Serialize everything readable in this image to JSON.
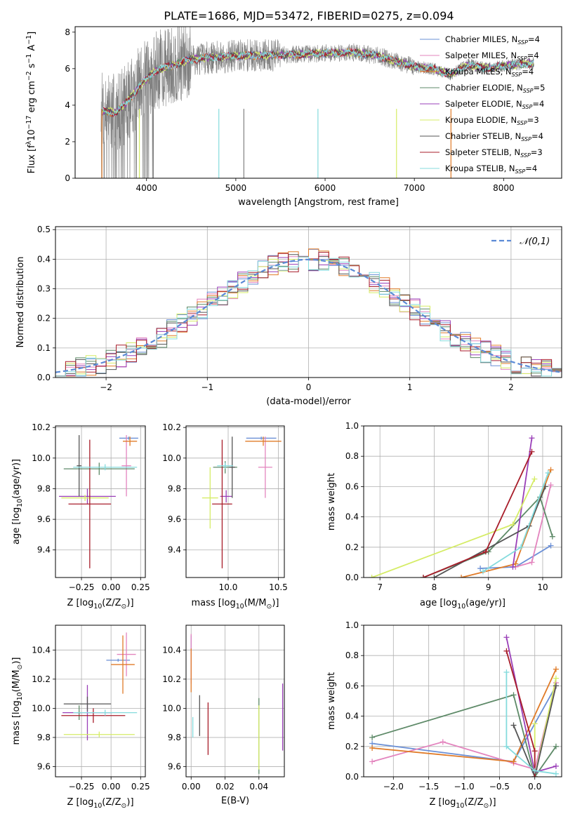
{
  "figure_title": "PLATE=1686, MJD=53472, FIBERID=0275, z=0.094",
  "models": [
    {
      "name": "Chabrier MILES",
      "nssp": "4",
      "color": "#6a8fd6"
    },
    {
      "name": "Salpeter MILES",
      "nssp": "4",
      "color": "#e384be"
    },
    {
      "name": "Kroupa MILES",
      "nssp": "4",
      "color": "#e07b28"
    },
    {
      "name": "Chabrier ELODIE",
      "nssp": "5",
      "color": "#5e8a68"
    },
    {
      "name": "Salpeter ELODIE",
      "nssp": "4",
      "color": "#9a3fb8"
    },
    {
      "name": "Kroupa ELODIE",
      "nssp": "3",
      "color": "#d5ec66"
    },
    {
      "name": "Chabrier STELIB",
      "nssp": "4",
      "color": "#555555"
    },
    {
      "name": "Salpeter STELIB",
      "nssp": "3",
      "color": "#a81d2a"
    },
    {
      "name": "Kroupa STELIB",
      "nssp": "4",
      "color": "#85dbdd"
    }
  ],
  "chart_data": [
    {
      "id": "spectrum",
      "type": "line",
      "xlabel": "wavelength [Angstrom, rest frame]",
      "ylabel_parts": [
        "Flux [f",
        "λ",
        "10",
        "−17",
        " erg cm",
        "−2",
        " s",
        "−1",
        " A",
        "−1",
        "]"
      ],
      "xlim": [
        3200,
        8650
      ],
      "ylim": [
        0,
        8.3
      ],
      "xticks": [
        4000,
        5000,
        6000,
        7000,
        8000
      ],
      "yticks": [
        0,
        2,
        4,
        6,
        8
      ],
      "legend_location": "upper right",
      "grid": false,
      "observed_color": "#808080",
      "continuum_anchors": [
        [
          3500,
          3.7
        ],
        [
          3650,
          3.6
        ],
        [
          3750,
          4.0
        ],
        [
          3850,
          4.6
        ],
        [
          3950,
          5.2
        ],
        [
          4100,
          5.9
        ],
        [
          4300,
          6.2
        ],
        [
          4500,
          6.5
        ],
        [
          4700,
          6.6
        ],
        [
          5000,
          6.7
        ],
        [
          5500,
          6.75
        ],
        [
          6000,
          6.85
        ],
        [
          6300,
          6.9
        ],
        [
          6600,
          6.7
        ],
        [
          7000,
          6.1
        ],
        [
          7200,
          6.0
        ],
        [
          7400,
          5.7
        ],
        [
          7600,
          6.2
        ],
        [
          7800,
          6.05
        ],
        [
          8000,
          6.15
        ],
        [
          8300,
          6.3
        ]
      ]
    },
    {
      "id": "residuals",
      "type": "histogram",
      "xlabel": "(data-model)/error",
      "ylabel": "Normed distribution",
      "xlim": [
        -2.5,
        2.5
      ],
      "ylim": [
        0,
        0.51
      ],
      "xticks": [
        -2,
        -1,
        0,
        1,
        2
      ],
      "yticks": [
        0.0,
        0.1,
        0.2,
        0.3,
        0.4,
        0.5
      ],
      "grid": true,
      "legend_location": "upper right",
      "gaussian_label": "𝒩(0,1)",
      "gaussian_color": "#5b8ad6",
      "bin_width": 0.1,
      "bin_start": -2.5
    },
    {
      "id": "age_vs_Z",
      "type": "errorbar",
      "xlabel_parts": [
        "Z [log",
        "10",
        "(Z/Z",
        "⊙",
        ")]"
      ],
      "ylabel_parts": [
        "age  [log",
        "10",
        "(age/yr)]"
      ],
      "xlim": [
        -0.47,
        0.29
      ],
      "ylim": [
        9.22,
        10.21
      ],
      "xticks": [
        -0.25,
        0.0,
        0.25
      ],
      "yticks": [
        9.4,
        9.6,
        9.8,
        10.0,
        10.2
      ],
      "grid": true,
      "points": [
        {
          "model": 0,
          "x": 0.15,
          "xerr": 0.08,
          "y": 10.13,
          "yerr": 0.01
        },
        {
          "model": 1,
          "x": 0.13,
          "xerr": 0.04,
          "y": 9.95,
          "yerr": 0.2
        },
        {
          "model": 2,
          "x": 0.16,
          "xerr": 0.06,
          "y": 10.11,
          "yerr": 0.03
        },
        {
          "model": 3,
          "x": -0.1,
          "xerr": 0.3,
          "y": 9.93,
          "yerr": 0.04
        },
        {
          "model": 4,
          "x": -0.2,
          "xerr": 0.24,
          "y": 9.75,
          "yerr": 0.05
        },
        {
          "model": 5,
          "x": -0.22,
          "xerr": 0.2,
          "y": 9.74,
          "yerr": 0.02
        },
        {
          "model": 6,
          "x": -0.27,
          "xerr": 0.02,
          "y": 9.95,
          "yerr": 0.2
        },
        {
          "model": 7,
          "x": -0.18,
          "xerr": 0.18,
          "y": 9.7,
          "yerr": 0.42
        },
        {
          "model": 8,
          "x": -0.05,
          "xerr": 0.27,
          "y": 9.94,
          "yerr": 0.02
        }
      ]
    },
    {
      "id": "age_vs_mass",
      "type": "errorbar",
      "xlabel_parts": [
        "mass [log",
        "10",
        "(M/M",
        "⊙",
        ")]"
      ],
      "ylabel_parts": [],
      "xlim": [
        9.58,
        10.56
      ],
      "ylim": [
        9.22,
        10.21
      ],
      "xticks": [
        10.0,
        10.5
      ],
      "yticks": [
        9.4,
        9.6,
        9.8,
        10.0,
        10.2
      ],
      "grid": true,
      "points": [
        {
          "model": 0,
          "x": 10.33,
          "xerr": 0.15,
          "y": 10.13,
          "yerr": 0.01
        },
        {
          "model": 1,
          "x": 10.37,
          "xerr": 0.07,
          "y": 9.94,
          "yerr": 0.2
        },
        {
          "model": 2,
          "x": 10.35,
          "xerr": 0.18,
          "y": 10.11,
          "yerr": 0.03
        },
        {
          "model": 3,
          "x": 9.97,
          "xerr": 0.12,
          "y": 9.94,
          "yerr": 0.04
        },
        {
          "model": 4,
          "x": 9.98,
          "xerr": 0.06,
          "y": 9.75,
          "yerr": 0.04
        },
        {
          "model": 5,
          "x": 9.82,
          "xerr": 0.08,
          "y": 9.74,
          "yerr": 0.2
        },
        {
          "model": 6,
          "x": 10.04,
          "xerr": 0.03,
          "y": 9.94,
          "yerr": 0.2
        },
        {
          "model": 7,
          "x": 9.94,
          "xerr": 0.1,
          "y": 9.7,
          "yerr": 0.42
        },
        {
          "model": 8,
          "x": 9.97,
          "xerr": 0.08,
          "y": 9.95,
          "yerr": 0.02
        }
      ]
    },
    {
      "id": "massweight_vs_age",
      "type": "line",
      "xlabel_parts": [
        "age  [log",
        "10",
        "(age/yr)]"
      ],
      "ylabel": "mass weight",
      "xlim": [
        6.7,
        10.35
      ],
      "ylim": [
        0,
        1
      ],
      "xticks": [
        7,
        8,
        9,
        10
      ],
      "yticks": [
        0.0,
        0.2,
        0.4,
        0.6,
        0.8,
        1.0
      ],
      "grid": true,
      "series": [
        {
          "model": 0,
          "points": [
            [
              8.85,
              0.06
            ],
            [
              9.5,
              0.07
            ],
            [
              10.15,
              0.21
            ]
          ]
        },
        {
          "model": 1,
          "points": [
            [
              9.5,
              0.07
            ],
            [
              9.8,
              0.1
            ],
            [
              10.15,
              0.61
            ]
          ]
        },
        {
          "model": 2,
          "points": [
            [
              8.5,
              0.0
            ],
            [
              9.5,
              0.09
            ],
            [
              10.15,
              0.71
            ]
          ]
        },
        {
          "model": 3,
          "points": [
            [
              7.8,
              0.0
            ],
            [
              9.0,
              0.17
            ],
            [
              9.95,
              0.53
            ],
            [
              10.18,
              0.27
            ]
          ]
        },
        {
          "model": 4,
          "points": [
            [
              9.45,
              0.07
            ],
            [
              9.8,
              0.92
            ]
          ]
        },
        {
          "model": 5,
          "points": [
            [
              6.85,
              0.0
            ],
            [
              9.45,
              0.35
            ],
            [
              9.85,
              0.65
            ]
          ]
        },
        {
          "model": 6,
          "points": [
            [
              8.0,
              0.0
            ],
            [
              9.75,
              0.34
            ],
            [
              10.05,
              0.6
            ]
          ]
        },
        {
          "model": 7,
          "points": [
            [
              7.8,
              0.0
            ],
            [
              8.95,
              0.17
            ],
            [
              9.8,
              0.83
            ]
          ]
        },
        {
          "model": 8,
          "points": [
            [
              8.9,
              0.04
            ],
            [
              9.6,
              0.2
            ],
            [
              10.1,
              0.69
            ]
          ]
        }
      ]
    },
    {
      "id": "mass_vs_Z",
      "type": "errorbar",
      "xlabel_parts": [
        "Z [log",
        "10",
        "(Z/Z",
        "⊙",
        ")]"
      ],
      "ylabel_parts": [
        "mass [log",
        "10",
        "(M/M",
        "⊙",
        ")]"
      ],
      "xlim": [
        -0.47,
        0.29
      ],
      "ylim": [
        9.53,
        10.57
      ],
      "xticks": [
        -0.25,
        0.0,
        0.25
      ],
      "yticks": [
        9.6,
        9.8,
        10.0,
        10.2,
        10.4
      ],
      "grid": true,
      "points": [
        {
          "model": 0,
          "x": 0.06,
          "xerr": 0.1,
          "y": 10.33,
          "yerr": 0.01
        },
        {
          "model": 1,
          "x": 0.13,
          "xerr": 0.08,
          "y": 10.37,
          "yerr": 0.15
        },
        {
          "model": 2,
          "x": 0.1,
          "xerr": 0.1,
          "y": 10.3,
          "yerr": 0.2
        },
        {
          "model": 3,
          "x": -0.27,
          "xerr": 0.02,
          "y": 9.97,
          "yerr": 0.05
        },
        {
          "model": 4,
          "x": -0.2,
          "xerr": 0.21,
          "y": 9.97,
          "yerr": 0.19
        },
        {
          "model": 5,
          "x": -0.1,
          "xerr": 0.3,
          "y": 9.82,
          "yerr": 0.02
        },
        {
          "model": 6,
          "x": -0.2,
          "xerr": 0.2,
          "y": 10.03,
          "yerr": 0.05
        },
        {
          "model": 7,
          "x": -0.15,
          "xerr": 0.27,
          "y": 9.95,
          "yerr": 0.05
        },
        {
          "model": 8,
          "x": -0.05,
          "xerr": 0.27,
          "y": 9.97,
          "yerr": 0.02
        }
      ]
    },
    {
      "id": "ebv",
      "type": "errorbar",
      "xlabel": "E(B-V)",
      "ylabel_parts": [],
      "xlim": [
        -0.003,
        0.055
      ],
      "ylim": [
        9.53,
        10.57
      ],
      "xticks": [
        0.0,
        0.02,
        0.04
      ],
      "yticks": [
        9.6,
        9.8,
        10.0,
        10.2,
        10.4
      ],
      "grid": true,
      "points": [
        {
          "model": 0,
          "x": 0.0,
          "xerr": 0,
          "y": 10.35,
          "yerr": 0.15
        },
        {
          "model": 1,
          "x": 0.0,
          "xerr": 0,
          "y": 10.34,
          "yerr": 0.17
        },
        {
          "model": 2,
          "x": 0.0,
          "xerr": 0,
          "y": 10.26,
          "yerr": 0.15
        },
        {
          "model": 3,
          "x": 0.04,
          "xerr": 0,
          "y": 9.81,
          "yerr": 0.26
        },
        {
          "model": 4,
          "x": 0.054,
          "xerr": 0,
          "y": 9.94,
          "yerr": 0.23
        },
        {
          "model": 5,
          "x": 0.04,
          "xerr": 0,
          "y": 9.8,
          "yerr": 0.22
        },
        {
          "model": 6,
          "x": 0.005,
          "xerr": 0,
          "y": 9.95,
          "yerr": 0.14
        },
        {
          "model": 7,
          "x": 0.01,
          "xerr": 0,
          "y": 9.86,
          "yerr": 0.18
        },
        {
          "model": 8,
          "x": 0.001,
          "xerr": 0,
          "y": 9.87,
          "yerr": 0.07
        }
      ]
    },
    {
      "id": "massweight_vs_Z",
      "type": "line",
      "xlabel_parts": [
        "Z [log",
        "10",
        "(Z/Z",
        "⊙",
        ")]"
      ],
      "ylabel": "mass weight",
      "xlim": [
        -2.42,
        0.38
      ],
      "ylim": [
        0,
        1
      ],
      "xticks": [
        -2.0,
        -1.5,
        -1.0,
        -0.5,
        0.0
      ],
      "yticks": [
        0.0,
        0.2,
        0.4,
        0.6,
        0.8,
        1.0
      ],
      "grid": true,
      "series": [
        {
          "model": 0,
          "points": [
            [
              -2.3,
              0.22
            ],
            [
              -0.3,
              0.1
            ],
            [
              0.3,
              0.6
            ]
          ]
        },
        {
          "model": 1,
          "points": [
            [
              -2.3,
              0.1
            ],
            [
              -1.3,
              0.23
            ],
            [
              -0.3,
              0.09
            ],
            [
              0.0,
              0.05
            ],
            [
              0.3,
              0.62
            ]
          ]
        },
        {
          "model": 2,
          "points": [
            [
              -2.3,
              0.19
            ],
            [
              -0.3,
              0.1
            ],
            [
              0.3,
              0.71
            ]
          ]
        },
        {
          "model": 3,
          "points": [
            [
              -2.3,
              0.26
            ],
            [
              -0.3,
              0.54
            ],
            [
              0.0,
              0.0
            ],
            [
              0.3,
              0.2
            ]
          ]
        },
        {
          "model": 4,
          "points": [
            [
              -0.4,
              0.92
            ],
            [
              0.0,
              0.03
            ],
            [
              0.3,
              0.07
            ]
          ]
        },
        {
          "model": 5,
          "points": [
            [
              0.0,
              0.35
            ],
            [
              0.0,
              0.0
            ],
            [
              0.3,
              0.65
            ]
          ]
        },
        {
          "model": 6,
          "points": [
            [
              -0.3,
              0.34
            ],
            [
              0.0,
              0.0
            ],
            [
              0.3,
              0.6
            ]
          ]
        },
        {
          "model": 7,
          "points": [
            [
              -0.4,
              0.83
            ],
            [
              0.0,
              0.17
            ],
            [
              0.0,
              0.0
            ]
          ]
        },
        {
          "model": 8,
          "points": [
            [
              -0.4,
              0.69
            ],
            [
              -0.4,
              0.2
            ],
            [
              0.0,
              0.04
            ],
            [
              0.3,
              0.02
            ]
          ]
        }
      ]
    }
  ]
}
